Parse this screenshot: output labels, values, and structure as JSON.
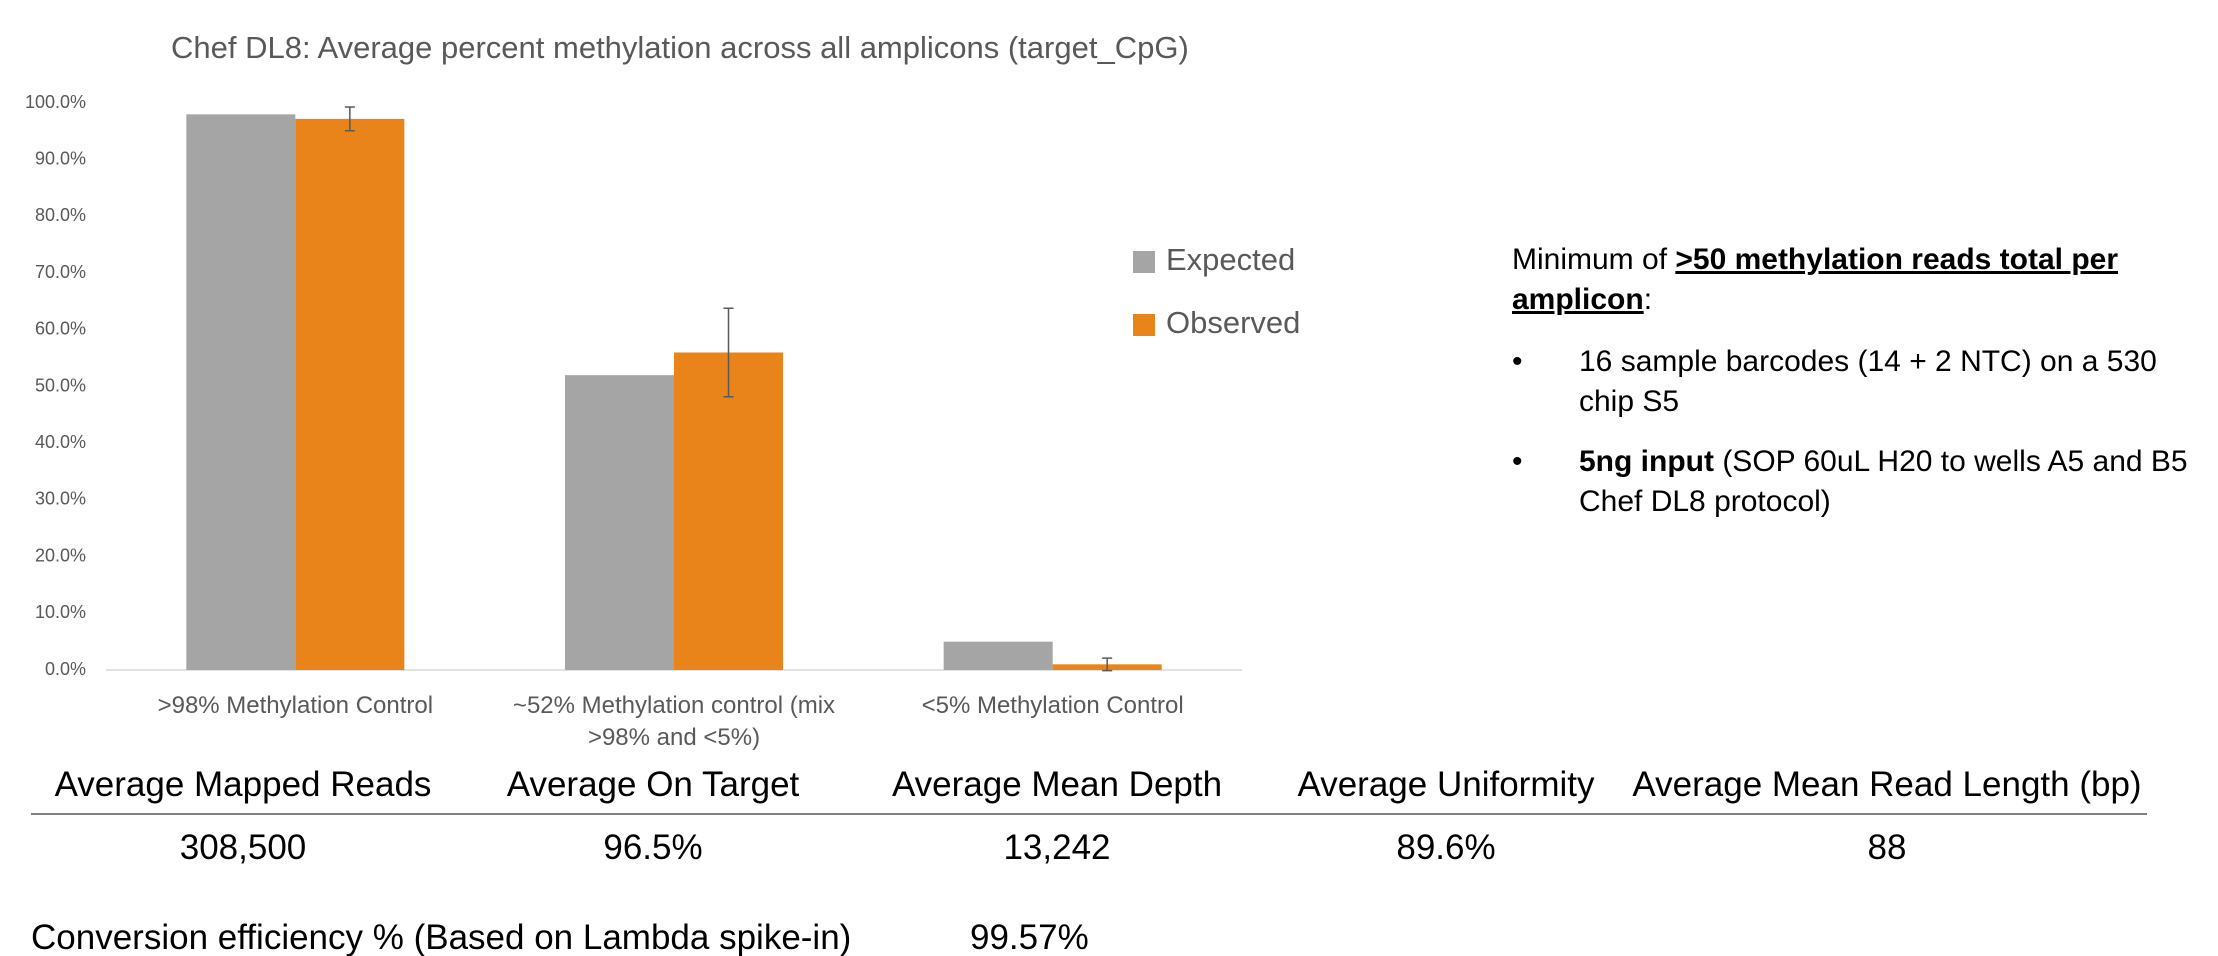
{
  "chart_data": {
    "type": "bar",
    "title": "Chef DL8: Average percent methylation across all amplicons (target_CpG)",
    "categories": [
      ">98% Methylation Control",
      "~52% Methylation control (mix >98% and <5%)",
      "<5% Methylation Control"
    ],
    "series": [
      {
        "name": "Expected",
        "color": "#a5a5a5",
        "values": [
          98,
          52,
          5
        ]
      },
      {
        "name": "Observed",
        "color": "#e9841a",
        "values": [
          97.2,
          56,
          1
        ],
        "errors": [
          2.1,
          7.8,
          1.1
        ]
      }
    ],
    "ylim": [
      0,
      100
    ],
    "yticks": [
      {
        "value": 0,
        "label": "0.0%"
      },
      {
        "value": 10,
        "label": "10.0%"
      },
      {
        "value": 20,
        "label": "20.0%"
      },
      {
        "value": 30,
        "label": "30.0%"
      },
      {
        "value": 40,
        "label": "40.0%"
      },
      {
        "value": 50,
        "label": "50.0%"
      },
      {
        "value": 60,
        "label": "60.0%"
      },
      {
        "value": 70,
        "label": "70.0%"
      },
      {
        "value": 80,
        "label": "80.0%"
      },
      {
        "value": 90,
        "label": "90.0%"
      },
      {
        "value": 100,
        "label": "100.0%"
      }
    ],
    "grid": false,
    "legend": "right"
  },
  "notes": {
    "intro": "Minimum of ",
    "intro_bold": ">50 methylation reads total per amplicon",
    "intro_end": ":",
    "bullet_1": "16 sample barcodes (14 + 2 NTC) on a 530 chip S5",
    "bullet_2_bold": "5ng input",
    "bullet_2": " (SOP 60uL H20 to wells A5 and B5 Chef DL8 protocol)"
  },
  "table": {
    "headers": [
      "Average Mapped Reads",
      "Average On Target",
      "Average Mean Depth",
      "Average Uniformity",
      "Average Mean Read Length (bp)"
    ],
    "rows": [
      [
        "308,500",
        "96.5%",
        "13,242",
        "89.6%",
        "88"
      ]
    ]
  },
  "conversion": {
    "label": "Conversion efficiency % (Based on Lambda spike-in)",
    "value": "99.57%"
  }
}
